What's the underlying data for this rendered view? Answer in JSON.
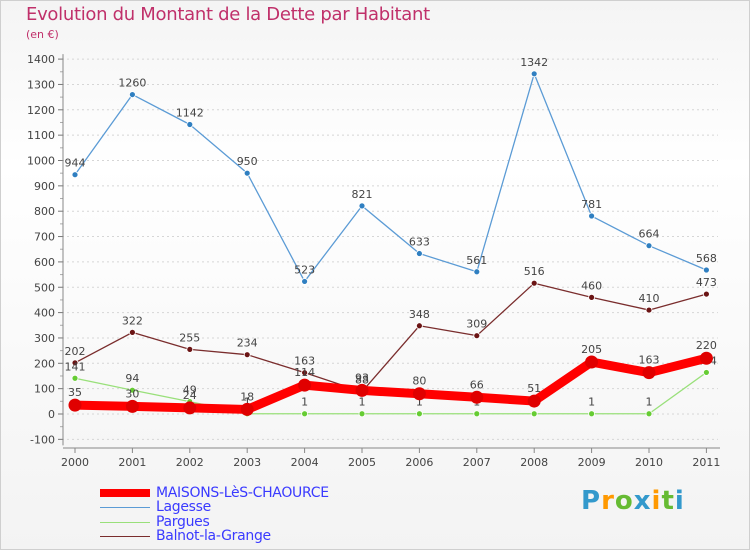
{
  "chart_data": {
    "type": "line",
    "title": "Evolution du Montant de la Dette par Habitant",
    "subtitle": "(en €)",
    "x": [
      "2000",
      "2001",
      "2002",
      "2003",
      "2004",
      "2005",
      "2006",
      "2007",
      "2008",
      "2009",
      "2010",
      "2011"
    ],
    "ylim": [
      -100,
      1400
    ],
    "yticks": [
      -100,
      0,
      100,
      200,
      300,
      400,
      500,
      600,
      700,
      800,
      900,
      1000,
      1100,
      1200,
      1300,
      1400
    ],
    "grid": "horizontal dashed",
    "legend_position": "bottom-left",
    "series": [
      {
        "name": "Lagesse",
        "color": "#5b9bd5",
        "marker": "#2f7fc1",
        "values": [
          944,
          1260,
          1142,
          950,
          523,
          821,
          633,
          561,
          1342,
          781,
          664,
          568
        ]
      },
      {
        "name": "Balnot-la-Grange",
        "color": "#7a2d2d",
        "marker": "#6b1414",
        "values": [
          202,
          322,
          255,
          234,
          163,
          88,
          348,
          309,
          516,
          460,
          410,
          473
        ]
      },
      {
        "name": "Pargues",
        "color": "#99e07a",
        "marker": "#66cc33",
        "values": [
          141,
          94,
          49,
          1,
          1,
          1,
          1,
          1,
          1,
          1,
          1,
          164
        ]
      },
      {
        "name": "MAISONS-LèS-CHAOURCE",
        "color": "#ff0000",
        "marker": "#e00000",
        "values": [
          35,
          30,
          24,
          18,
          114,
          93,
          80,
          66,
          51,
          205,
          163,
          220
        ]
      }
    ]
  },
  "legend": [
    {
      "label": "MAISONS-LèS-CHAOURCE",
      "color": "#ff0000"
    },
    {
      "label": "Lagesse",
      "color": "#5b9bd5"
    },
    {
      "label": "Pargues",
      "color": "#99e07a"
    },
    {
      "label": "Balnot-la-Grange",
      "color": "#7a2d2d"
    }
  ],
  "logo": {
    "text": "Proxiti",
    "colors": [
      "#3399cc",
      "#ff9900",
      "#66bb33",
      "#3399cc",
      "#ff9900",
      "#66bb33",
      "#3399cc"
    ]
  }
}
